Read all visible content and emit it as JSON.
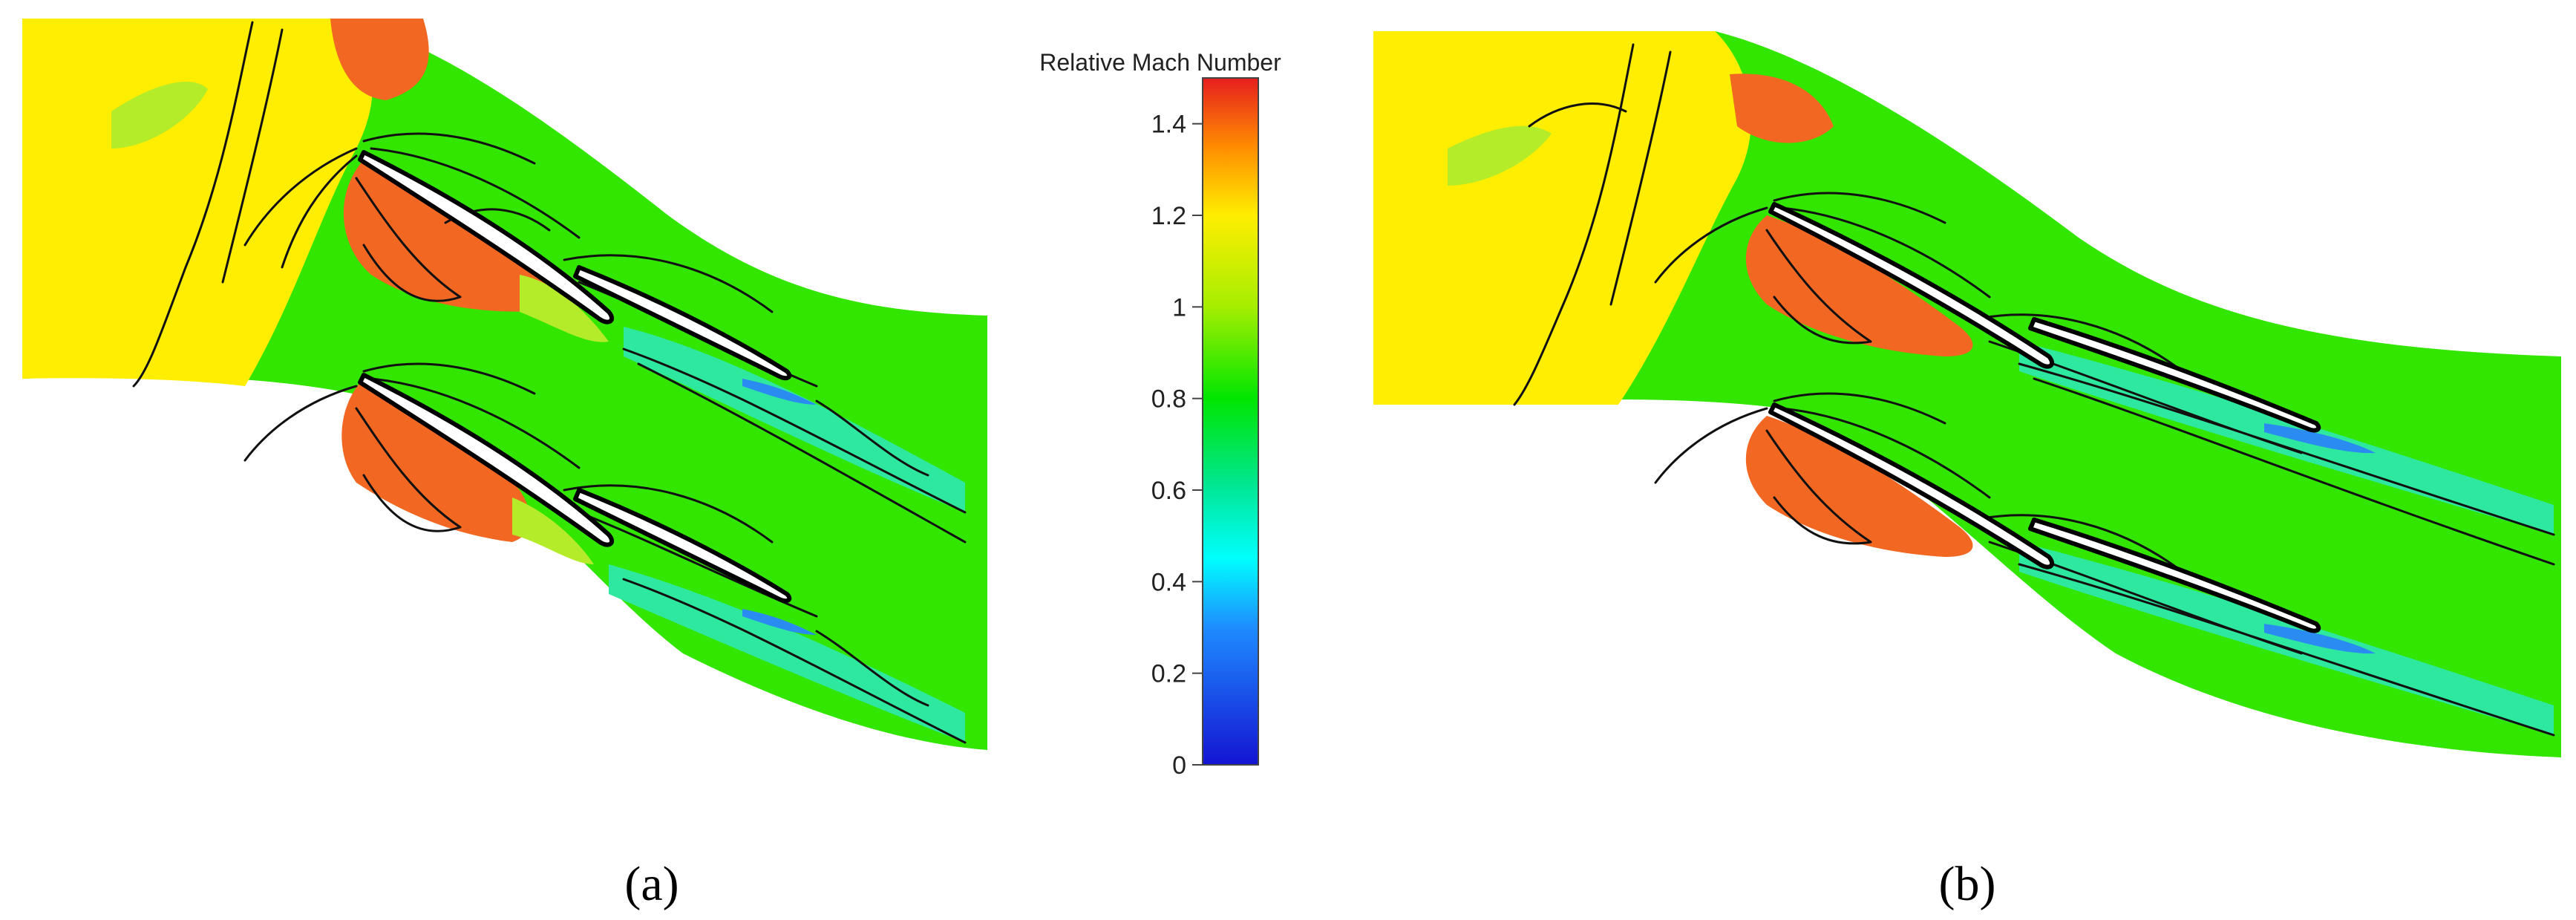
{
  "colorbar": {
    "title": "Relative Mach Number",
    "range": [
      0,
      1.5
    ],
    "ticks": [
      {
        "value": 0,
        "label": "0"
      },
      {
        "value": 0.2,
        "label": "0.2"
      },
      {
        "value": 0.4,
        "label": "0.4"
      },
      {
        "value": 0.6,
        "label": "0.6"
      },
      {
        "value": 0.8,
        "label": "0.8"
      },
      {
        "value": 1.0,
        "label": "1"
      },
      {
        "value": 1.2,
        "label": "1.2"
      },
      {
        "value": 1.4,
        "label": "1.4"
      }
    ],
    "colors": [
      {
        "value": 0.0,
        "color": "#1414d2"
      },
      {
        "value": 0.3,
        "color": "#1e8cff"
      },
      {
        "value": 0.45,
        "color": "#00ffff"
      },
      {
        "value": 0.62,
        "color": "#00e68c"
      },
      {
        "value": 0.8,
        "color": "#00e600"
      },
      {
        "value": 1.0,
        "color": "#a5ee00"
      },
      {
        "value": 1.2,
        "color": "#ffee00"
      },
      {
        "value": 1.35,
        "color": "#ff8c00"
      },
      {
        "value": 1.5,
        "color": "#e61e1e"
      }
    ]
  },
  "panels": [
    {
      "id": "a",
      "label": "(a)"
    },
    {
      "id": "b",
      "label": "(b)"
    }
  ],
  "field_colors": {
    "inlet": "#ffee00",
    "passage": "#33e600",
    "supersonic": "#f26722",
    "transonic": "#b5ec2a",
    "wake": "#2ee8a0",
    "low": "#2a8cf0"
  }
}
